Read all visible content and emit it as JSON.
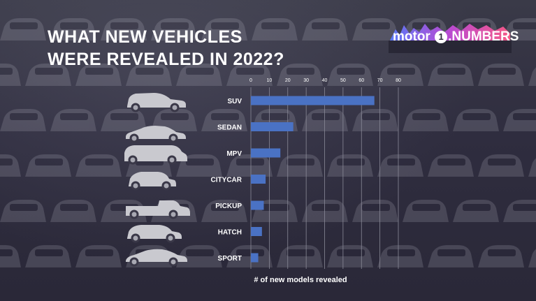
{
  "title_line1": "WHAT NEW VEHICLES",
  "title_line2": "WERE REVEALED IN 2022?",
  "logo": {
    "text_left": "motor",
    "text_one": "1",
    "text_right": "NUMBERS"
  },
  "colors": {
    "bar": "#4a72c4",
    "background": "#2a2839",
    "text": "#ffffff",
    "grid": "#8a8a98"
  },
  "icons": [
    "suv-car-icon",
    "sedan-car-icon",
    "mpv-car-icon",
    "citycar-icon",
    "pickup-truck-icon",
    "hatch-car-icon",
    "sport-car-icon"
  ],
  "chart_data": {
    "type": "bar",
    "orientation": "horizontal",
    "categories": [
      "SUV",
      "SEDAN",
      "MPV",
      "CITYCAR",
      "PICKUP",
      "HATCH",
      "SPORT"
    ],
    "values": [
      67,
      23,
      16,
      8,
      7,
      6,
      4
    ],
    "xlabel": "# of new models revealed",
    "xlim": [
      0,
      80
    ],
    "xticks": [
      0,
      10,
      20,
      30,
      40,
      50,
      60,
      70,
      80
    ],
    "grid": true
  }
}
